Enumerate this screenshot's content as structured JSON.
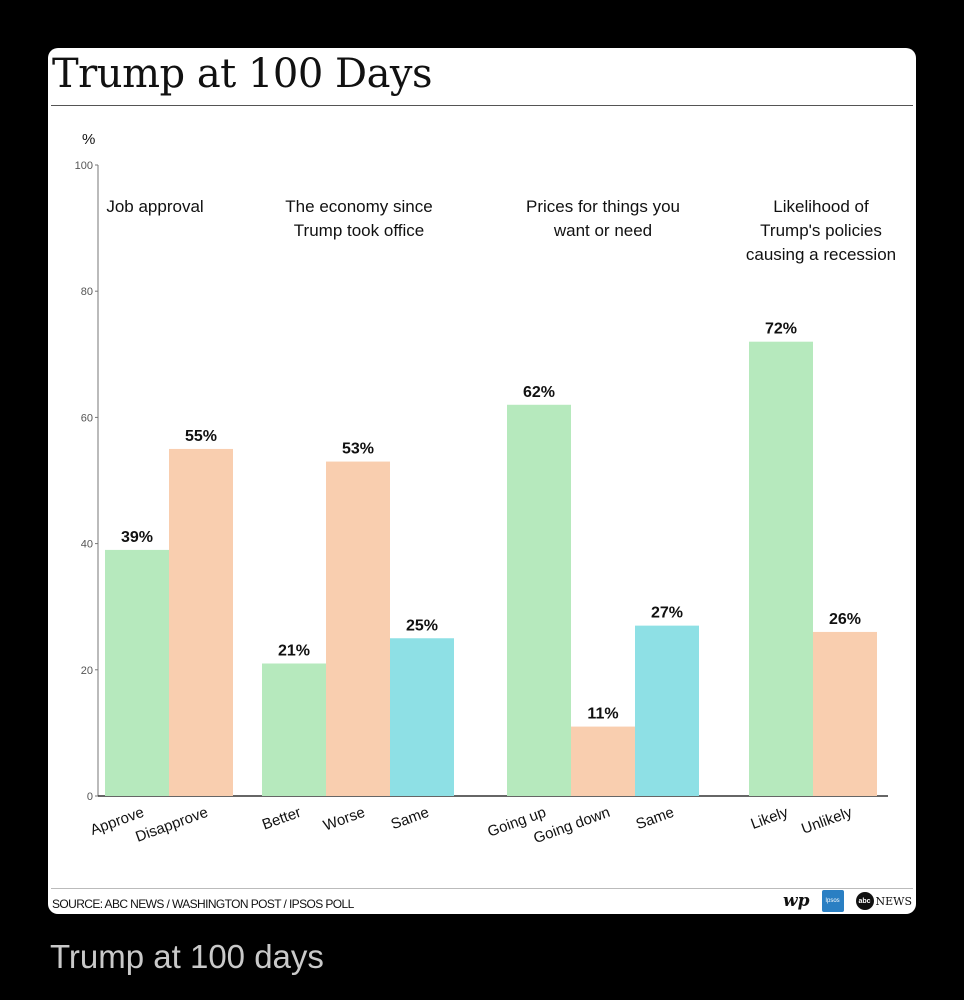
{
  "card": {
    "source": "SOURCE: ABC NEWS / WASHINGTON POST / IPSOS POLL",
    "logos": {
      "wp": "wp",
      "ipsos": "Ipsos",
      "abc_circle": "abc",
      "abc_news": "NEWS"
    }
  },
  "caption": "Trump at 100 days",
  "colors": {
    "green": "#b6e9bd",
    "peach": "#f9ceaf",
    "cyan": "#8ee0e5"
  },
  "chart_data": {
    "type": "bar",
    "title": "Trump at 100 Days",
    "ylabel": "%",
    "ylim": [
      0,
      100
    ],
    "yticks": [
      0,
      20,
      40,
      60,
      80,
      100
    ],
    "grid": false,
    "groups": [
      {
        "title": [
          "Job approval"
        ],
        "bars": [
          {
            "label": "Approve",
            "value": 39,
            "value_label": "39%",
            "color": "green"
          },
          {
            "label": "Disapprove",
            "value": 55,
            "value_label": "55%",
            "color": "peach"
          }
        ]
      },
      {
        "title": [
          "The economy since",
          "Trump took office"
        ],
        "bars": [
          {
            "label": "Better",
            "value": 21,
            "value_label": "21%",
            "color": "green"
          },
          {
            "label": "Worse",
            "value": 53,
            "value_label": "53%",
            "color": "peach"
          },
          {
            "label": "Same",
            "value": 25,
            "value_label": "25%",
            "color": "cyan"
          }
        ]
      },
      {
        "title": [
          "Prices for things you",
          "want or need"
        ],
        "bars": [
          {
            "label": "Going up",
            "value": 62,
            "value_label": "62%",
            "color": "green"
          },
          {
            "label": "Going down",
            "value": 11,
            "value_label": "11%",
            "color": "peach"
          },
          {
            "label": "Same",
            "value": 27,
            "value_label": "27%",
            "color": "cyan"
          }
        ]
      },
      {
        "title": [
          "Likelihood of",
          "Trump's policies",
          "causing a recession"
        ],
        "bars": [
          {
            "label": "Likely",
            "value": 72,
            "value_label": "72%",
            "color": "green"
          },
          {
            "label": "Unlikely",
            "value": 26,
            "value_label": "26%",
            "color": "peach"
          }
        ]
      }
    ]
  }
}
